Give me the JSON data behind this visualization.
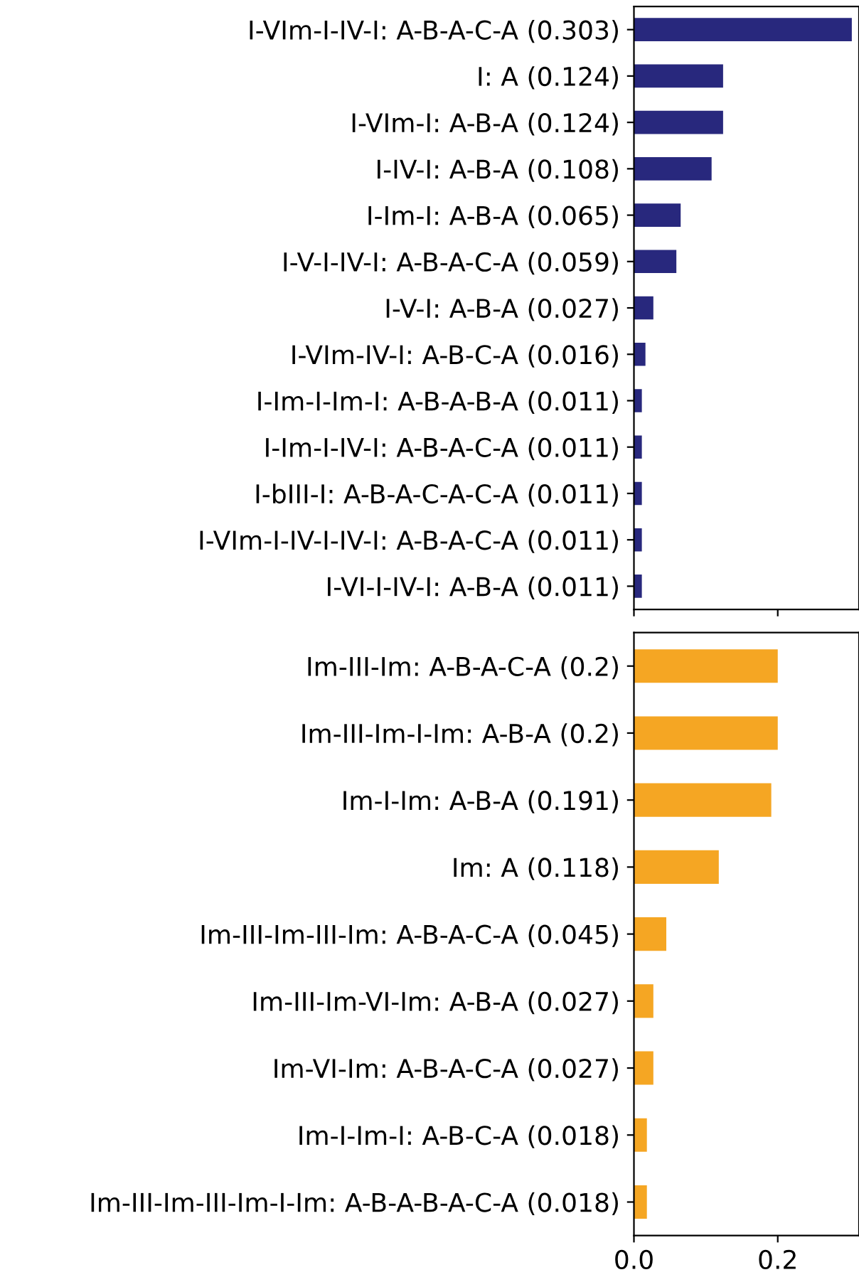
{
  "chart_data": [
    {
      "type": "bar",
      "orientation": "horizontal",
      "categories": [
        "I-VIm-I-IV-I: A-B-A-C-A (0.303)",
        "I: A (0.124)",
        "I-VIm-I: A-B-A (0.124)",
        "I-IV-I: A-B-A (0.108)",
        "I-Im-I: A-B-A (0.065)",
        "I-V-I-IV-I: A-B-A-C-A (0.059)",
        "I-V-I: A-B-A (0.027)",
        "I-VIm-IV-I: A-B-C-A (0.016)",
        "I-Im-I-Im-I: A-B-A-B-A (0.011)",
        "I-Im-I-IV-I: A-B-A-C-A (0.011)",
        "I-bIII-I: A-B-A-C-A-C-A (0.011)",
        "I-VIm-I-IV-I-IV-I: A-B-A-C-A (0.011)",
        "I-VI-I-IV-I: A-B-A (0.011)"
      ],
      "series": [
        {
          "color": "#28287d",
          "values": [
            0.303,
            0.124,
            0.124,
            0.108,
            0.065,
            0.059,
            0.027,
            0.016,
            0.011,
            0.011,
            0.011,
            0.011,
            0.011
          ]
        }
      ],
      "xlim": [
        0,
        0.313
      ],
      "xticks": [
        0,
        0.2
      ],
      "tick_labels": "y",
      "grid": false,
      "legend": false
    },
    {
      "type": "bar",
      "orientation": "horizontal",
      "categories": [
        "Im-III-Im: A-B-A-C-A (0.2)",
        "Im-III-Im-I-Im: A-B-A (0.2)",
        "Im-I-Im: A-B-A (0.191)",
        "Im: A (0.118)",
        "Im-III-Im-III-Im: A-B-A-C-A (0.045)",
        "Im-III-Im-VI-Im: A-B-A (0.027)",
        "Im-VI-Im: A-B-A-C-A (0.027)",
        "Im-I-Im-I: A-B-C-A (0.018)",
        "Im-III-Im-III-Im-I-Im: A-B-A-B-A-C-A (0.018)"
      ],
      "series": [
        {
          "color": "#f5a623",
          "values": [
            0.2,
            0.2,
            0.191,
            0.118,
            0.045,
            0.027,
            0.027,
            0.018,
            0.018
          ]
        }
      ],
      "xlim": [
        0,
        0.313
      ],
      "xticks": [
        {
          "value": 0,
          "label": "0.0"
        },
        {
          "value": 0.2,
          "label": "0.2"
        }
      ],
      "grid": false,
      "legend": false
    }
  ]
}
